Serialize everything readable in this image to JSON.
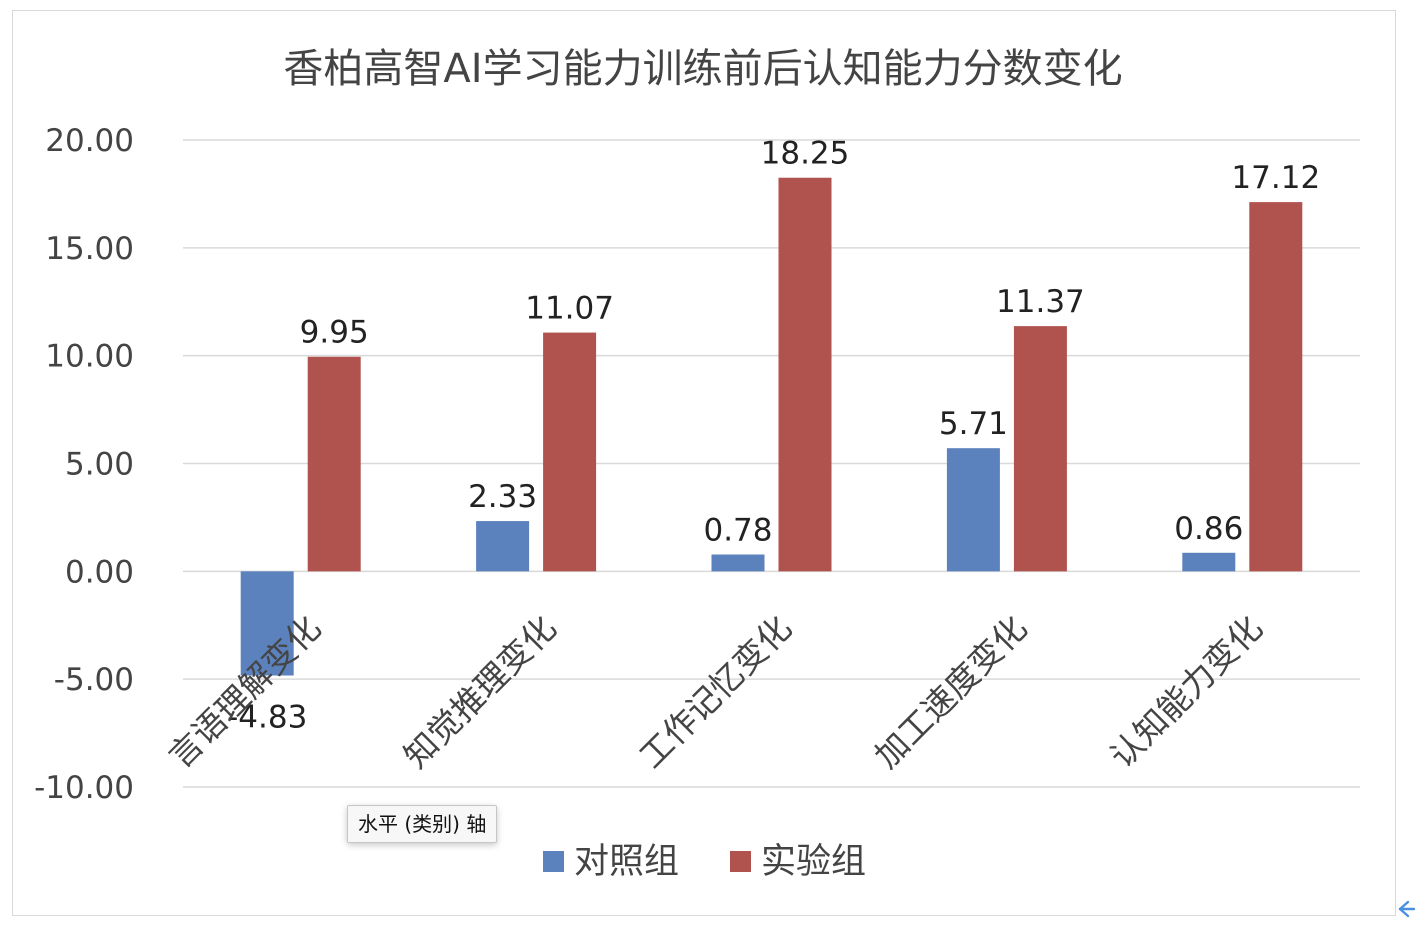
{
  "colors": {
    "control": "#5b82bd",
    "experiment": "#b0524e",
    "grid": "#d9d9d9",
    "text": "#444444",
    "label": "#222222",
    "accent": "#4a90e2"
  },
  "tooltip": {
    "text": "水平 (类别) 轴"
  },
  "chart_data": {
    "type": "bar",
    "title": "香柏高智AI学习能力训练前后认知能力分数变化",
    "categories": [
      "言语理解变化",
      "知觉推理变化",
      "工作记忆变化",
      "加工速度变化",
      "认知能力变化"
    ],
    "series": [
      {
        "name": "对照组",
        "values": [
          -4.83,
          2.33,
          0.78,
          5.71,
          0.86
        ],
        "labels": [
          "-4.83",
          "2.33",
          "0.78",
          "5.71",
          "0.86"
        ]
      },
      {
        "name": "实验组",
        "values": [
          9.95,
          11.07,
          18.25,
          11.37,
          17.12
        ],
        "labels": [
          "9.95",
          "11.07",
          "18.25",
          "11.37",
          "17.12"
        ]
      }
    ],
    "ylim": [
      -10,
      20
    ],
    "yticks": [
      20,
      15,
      10,
      5,
      0,
      -5,
      -10
    ],
    "ytick_labels": [
      "20.00",
      "15.00",
      "10.00",
      "5.00",
      "0.00",
      "-5.00",
      "-10.00"
    ],
    "grid": true,
    "legend_position": "bottom"
  }
}
